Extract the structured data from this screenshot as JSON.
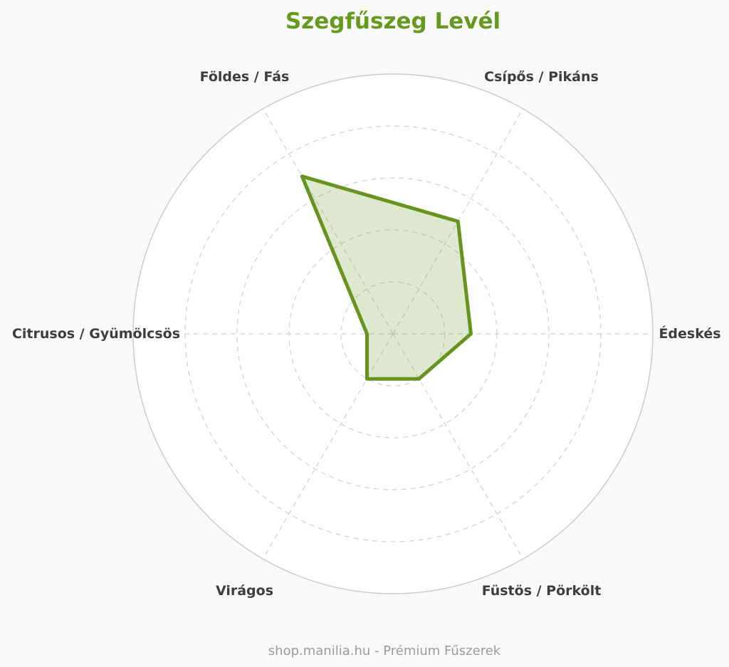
{
  "page": {
    "title": "Szegfűszeg Levél",
    "footer_credit": "shop.manilia.hu - Prémium Fűszerek"
  },
  "chart_data": {
    "type": "radar",
    "title": "Szegfűszeg Levél",
    "categories": [
      "Földes / Fás",
      "Csípős / Pikáns",
      "Édeskés",
      "Füstös / Pörkölt",
      "Virágos",
      "Citrusos / Gyümölcsös"
    ],
    "values": [
      7,
      5,
      3,
      2,
      2,
      1
    ],
    "axis_angles_deg": [
      120,
      60,
      0,
      300,
      240,
      180
    ],
    "scale": {
      "min": 0,
      "max": 10,
      "rings": 5,
      "ring_step": 2
    },
    "grid": {
      "inner_rings_style": "dashed",
      "outer_ring_style": "solid",
      "axis_lines_style": "dashed"
    },
    "legend": "none",
    "colors": {
      "title": "#67991f",
      "series_stroke": "#67941f",
      "series_fill": "rgba(104,148,31,0.22)",
      "grid_line": "#d0d0d0",
      "outer_ring": "#c9c9c9",
      "axis_label": "#3d3d3d",
      "footer": "#9b9b9b",
      "background": "#f9f9f9",
      "plot_background": "#ffffff"
    }
  }
}
